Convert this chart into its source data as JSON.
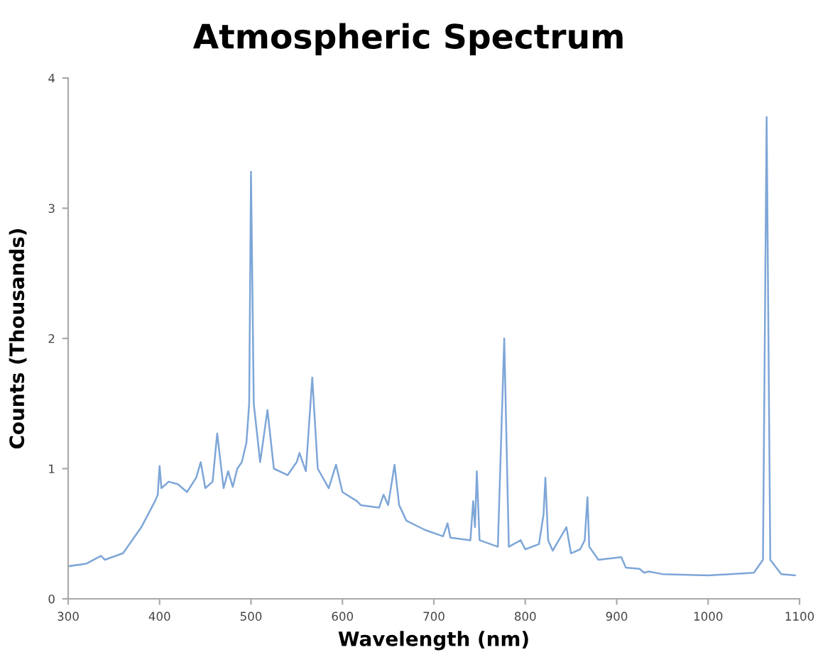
{
  "chart_data": {
    "type": "line",
    "title": "Atmospheric Spectrum",
    "xlabel": "Wavelength (nm)",
    "ylabel": "Counts (Thousands)",
    "xlim": [
      300,
      1100
    ],
    "xticks": [
      300,
      400,
      500,
      600,
      700,
      800,
      900,
      1000,
      1100
    ],
    "ylim": [
      0,
      4
    ],
    "yticks": [
      0,
      1,
      2,
      3,
      4
    ],
    "grid": false,
    "legend": false,
    "marker": "none",
    "line_style": "solid",
    "series": [
      {
        "color": "#7ea6d8",
        "x": [
          300,
          320,
          336,
          340,
          360,
          380,
          395,
          398,
          400,
          402,
          410,
          420,
          430,
          440,
          445,
          450,
          458,
          463,
          470,
          475,
          480,
          485,
          490,
          495,
          498,
          500,
          503,
          510,
          518,
          525,
          540,
          550,
          553,
          560,
          567,
          573,
          585,
          593,
          600,
          616,
          620,
          640,
          645,
          650,
          657,
          662,
          670,
          690,
          710,
          715,
          718,
          740,
          743,
          745,
          747,
          750,
          770,
          777,
          782,
          795,
          800,
          815,
          820,
          822,
          825,
          830,
          845,
          850,
          860,
          865,
          868,
          870,
          880,
          905,
          910,
          925,
          930,
          935,
          950,
          1000,
          1050,
          1060,
          1064,
          1068,
          1080,
          1095
        ],
        "values": [
          0.25,
          0.27,
          0.33,
          0.3,
          0.35,
          0.55,
          0.75,
          0.8,
          1.02,
          0.85,
          0.9,
          0.88,
          0.82,
          0.93,
          1.05,
          0.85,
          0.9,
          1.27,
          0.85,
          0.98,
          0.86,
          1.0,
          1.05,
          1.2,
          1.5,
          3.28,
          1.5,
          1.05,
          1.45,
          1.0,
          0.95,
          1.05,
          1.12,
          0.98,
          1.7,
          1.0,
          0.85,
          1.03,
          0.82,
          0.75,
          0.72,
          0.7,
          0.8,
          0.72,
          1.03,
          0.72,
          0.6,
          0.53,
          0.48,
          0.58,
          0.47,
          0.45,
          0.75,
          0.55,
          0.98,
          0.45,
          0.4,
          2.0,
          0.4,
          0.45,
          0.38,
          0.42,
          0.65,
          0.93,
          0.45,
          0.37,
          0.55,
          0.35,
          0.38,
          0.45,
          0.78,
          0.4,
          0.3,
          0.32,
          0.24,
          0.23,
          0.2,
          0.21,
          0.19,
          0.18,
          0.2,
          0.3,
          3.7,
          0.3,
          0.19,
          0.18
        ]
      }
    ]
  }
}
